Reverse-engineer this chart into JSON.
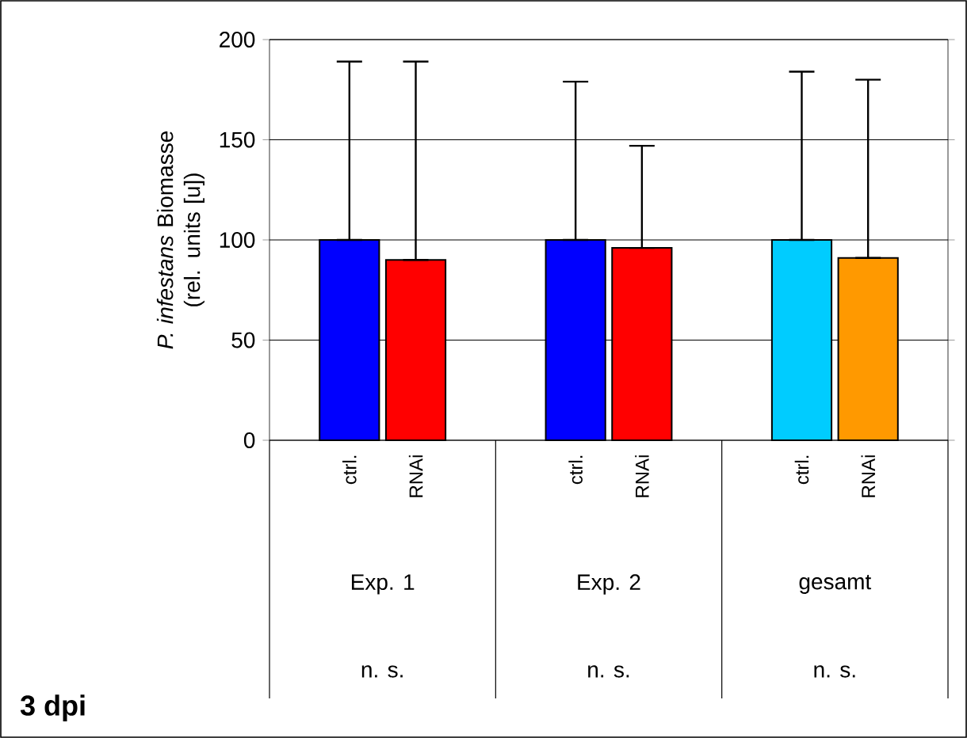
{
  "chart_data": {
    "type": "bar",
    "ylabel": "*P. infestans* Biomasse (rel. units [u])",
    "categories": [
      "ctrl.",
      "RNAi",
      "ctrl.",
      "RNAi",
      "ctrl.",
      "RNAi"
    ],
    "values": [
      100,
      90,
      100,
      96,
      100,
      91
    ],
    "colors": [
      "#0000ff",
      "#ff0000",
      "#0000ff",
      "#ff0000",
      "#00ccff",
      "#ff9900"
    ],
    "errors": [
      [
        100,
        189
      ],
      [
        90,
        189
      ],
      [
        100,
        179
      ],
      [
        96,
        147
      ],
      [
        100,
        184
      ],
      [
        91,
        180
      ]
    ],
    "ylim": [
      0,
      200
    ],
    "yticks": [
      0,
      50,
      100,
      150,
      200
    ],
    "grid": "y",
    "annotations": [
      "Exp. 1",
      "Exp. 2",
      "gesamt",
      "n. s.",
      "n. s.",
      "n. s.",
      "3 dpi"
    ]
  }
}
